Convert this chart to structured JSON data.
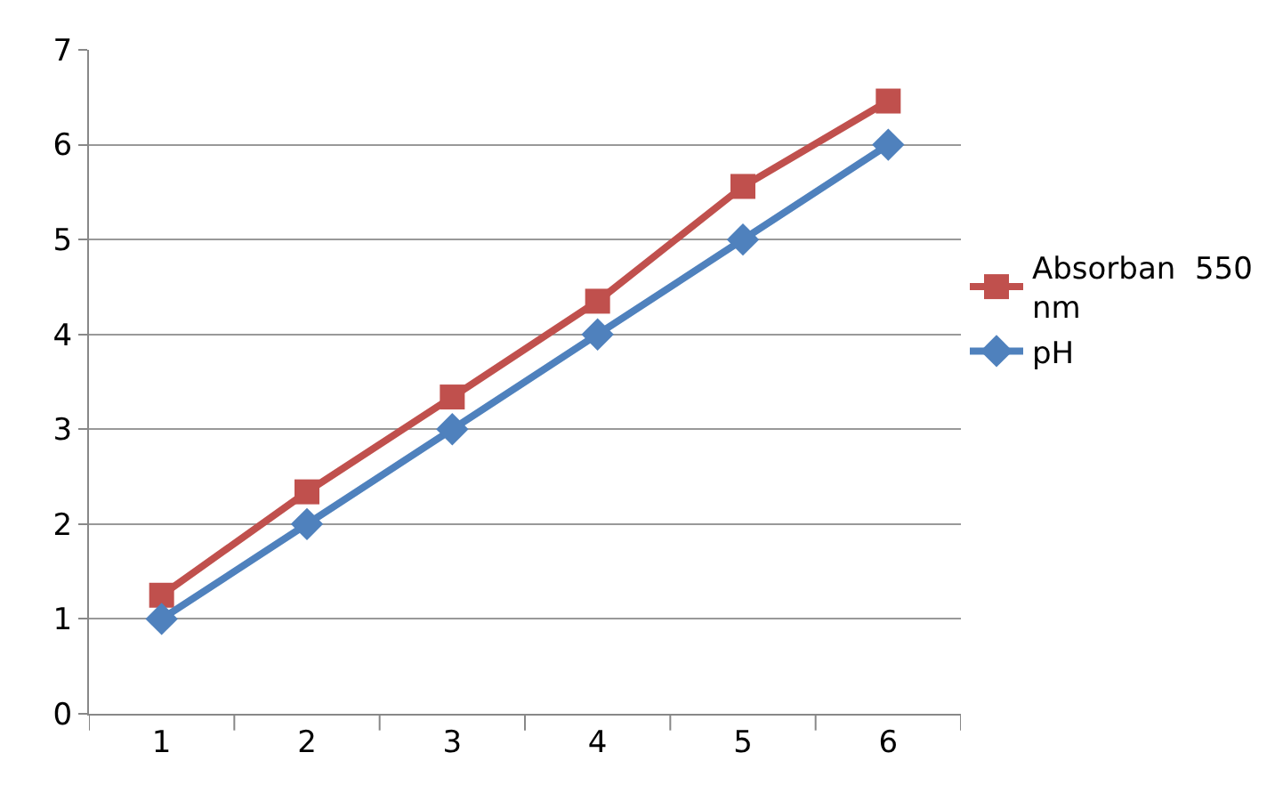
{
  "chart_data": {
    "type": "line",
    "categories": [
      "1",
      "2",
      "3",
      "4",
      "5",
      "6"
    ],
    "series": [
      {
        "name": "Absorban  550 nm",
        "color": "#c0504d",
        "marker": "square",
        "values": [
          1.25,
          2.34,
          3.34,
          4.35,
          5.56,
          6.46
        ]
      },
      {
        "name": "pH",
        "color": "#4f81bd",
        "marker": "diamond",
        "values": [
          1,
          2,
          3,
          4,
          5,
          6
        ]
      }
    ],
    "ylim": [
      0,
      7
    ],
    "yticks": [
      0,
      1,
      2,
      3,
      4,
      5,
      6,
      7
    ],
    "grid": "y",
    "legend": "right",
    "line_style": "solid"
  }
}
